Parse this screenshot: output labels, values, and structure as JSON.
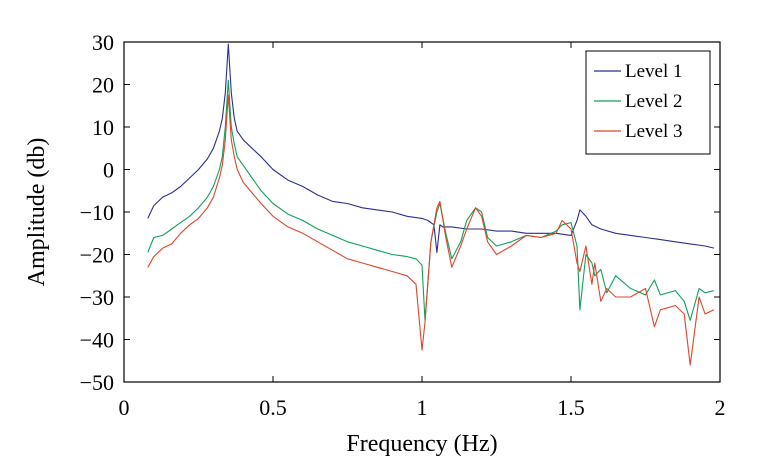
{
  "chart_data": {
    "type": "line",
    "title": "",
    "xlabel": "Frequency (Hz)",
    "ylabel": "Amplitude (db)",
    "xlim": [
      0,
      2
    ],
    "ylim": [
      -50,
      30
    ],
    "xticks": [
      0,
      0.5,
      1,
      1.5,
      2
    ],
    "xtick_labels": [
      "0",
      "0.5",
      "1",
      "1.5",
      "2"
    ],
    "yticks": [
      30,
      20,
      10,
      0,
      -10,
      -20,
      -30,
      -40,
      -50
    ],
    "ytick_labels": [
      "30",
      "20",
      "10",
      "0",
      "−10",
      "−20",
      "−30",
      "−40",
      "−50"
    ],
    "grid": false,
    "legend_position": "top-right",
    "series": [
      {
        "name": "Level 1",
        "color": "#2b2f8f",
        "x": [
          0.08,
          0.1,
          0.13,
          0.16,
          0.19,
          0.22,
          0.25,
          0.28,
          0.3,
          0.32,
          0.33,
          0.34,
          0.35,
          0.36,
          0.37,
          0.38,
          0.4,
          0.43,
          0.46,
          0.5,
          0.55,
          0.6,
          0.65,
          0.7,
          0.75,
          0.8,
          0.85,
          0.9,
          0.95,
          1.0,
          1.02,
          1.04,
          1.05,
          1.06,
          1.07,
          1.08,
          1.1,
          1.15,
          1.2,
          1.25,
          1.3,
          1.35,
          1.4,
          1.45,
          1.5,
          1.52,
          1.53,
          1.55,
          1.57,
          1.6,
          1.65,
          1.7,
          1.75,
          1.8,
          1.85,
          1.9,
          1.95,
          1.98
        ],
        "values": [
          -11.5,
          -8.5,
          -6.5,
          -5.5,
          -4,
          -2,
          0,
          2.5,
          5,
          9,
          12,
          18,
          29.5,
          18,
          12,
          9,
          7,
          5,
          3,
          0,
          -2.5,
          -4,
          -6,
          -7.5,
          -8,
          -9,
          -9.5,
          -10,
          -11,
          -11.5,
          -12,
          -13,
          -19.5,
          -13,
          -13.5,
          -13.5,
          -13.5,
          -14,
          -14,
          -14.5,
          -14.5,
          -15,
          -15,
          -15,
          -15.5,
          -12,
          -9.5,
          -11,
          -13,
          -14,
          -15,
          -15.5,
          -16,
          -16.5,
          -17,
          -17.5,
          -18,
          -18.5
        ]
      },
      {
        "name": "Level 2",
        "color": "#11a05a",
        "x": [
          0.08,
          0.1,
          0.13,
          0.16,
          0.19,
          0.22,
          0.25,
          0.28,
          0.3,
          0.32,
          0.33,
          0.34,
          0.35,
          0.36,
          0.37,
          0.38,
          0.4,
          0.43,
          0.46,
          0.5,
          0.55,
          0.6,
          0.65,
          0.7,
          0.75,
          0.8,
          0.85,
          0.9,
          0.95,
          0.98,
          1.0,
          1.01,
          1.03,
          1.05,
          1.06,
          1.08,
          1.1,
          1.13,
          1.15,
          1.18,
          1.2,
          1.22,
          1.25,
          1.3,
          1.35,
          1.4,
          1.45,
          1.47,
          1.5,
          1.52,
          1.53,
          1.55,
          1.57,
          1.58,
          1.6,
          1.62,
          1.65,
          1.7,
          1.75,
          1.78,
          1.8,
          1.85,
          1.88,
          1.9,
          1.93,
          1.95,
          1.98
        ],
        "values": [
          -19.5,
          -16,
          -15.5,
          -14,
          -12.5,
          -11,
          -9,
          -6.5,
          -4,
          0,
          3,
          10,
          21,
          10,
          6,
          3,
          1,
          -2,
          -5,
          -8,
          -10.5,
          -12,
          -14,
          -15.5,
          -17,
          -18,
          -19,
          -20,
          -20.5,
          -21,
          -22.5,
          -35.5,
          -17,
          -10,
          -8,
          -15,
          -21,
          -17,
          -12,
          -9,
          -10,
          -16,
          -18,
          -17,
          -15.5,
          -16,
          -14.5,
          -13,
          -12.5,
          -18,
          -33,
          -20,
          -22,
          -25,
          -23.5,
          -29,
          -25,
          -28,
          -29.5,
          -26,
          -29.5,
          -28.5,
          -31,
          -35.5,
          -28,
          -29,
          -28.5
        ]
      },
      {
        "name": "Level 3",
        "color": "#e0442a",
        "x": [
          0.08,
          0.1,
          0.13,
          0.16,
          0.19,
          0.22,
          0.25,
          0.28,
          0.3,
          0.32,
          0.33,
          0.34,
          0.35,
          0.36,
          0.37,
          0.38,
          0.4,
          0.43,
          0.46,
          0.5,
          0.55,
          0.6,
          0.65,
          0.7,
          0.75,
          0.8,
          0.85,
          0.9,
          0.95,
          0.98,
          1.0,
          1.01,
          1.03,
          1.05,
          1.06,
          1.08,
          1.1,
          1.13,
          1.15,
          1.18,
          1.2,
          1.22,
          1.25,
          1.3,
          1.35,
          1.4,
          1.45,
          1.47,
          1.5,
          1.52,
          1.53,
          1.55,
          1.57,
          1.58,
          1.6,
          1.62,
          1.65,
          1.7,
          1.75,
          1.78,
          1.8,
          1.85,
          1.88,
          1.9,
          1.93,
          1.95,
          1.98
        ],
        "values": [
          -23,
          -20.5,
          -18.5,
          -17.5,
          -15,
          -13,
          -11.5,
          -9,
          -6.5,
          -2,
          1,
          7,
          17.5,
          7,
          3,
          0,
          -3,
          -5.5,
          -8,
          -11,
          -13.5,
          -15,
          -17,
          -19,
          -21,
          -22,
          -23,
          -24,
          -25,
          -27,
          -42.5,
          -36,
          -17,
          -9,
          -7.5,
          -16,
          -23,
          -18,
          -14,
          -9,
          -11,
          -17,
          -20,
          -18,
          -15.5,
          -16,
          -15,
          -12,
          -14,
          -22,
          -24,
          -18,
          -27,
          -22,
          -31,
          -28,
          -30,
          -30,
          -28,
          -37,
          -33,
          -32,
          -34,
          -46,
          -30,
          -34,
          -33
        ]
      }
    ]
  }
}
